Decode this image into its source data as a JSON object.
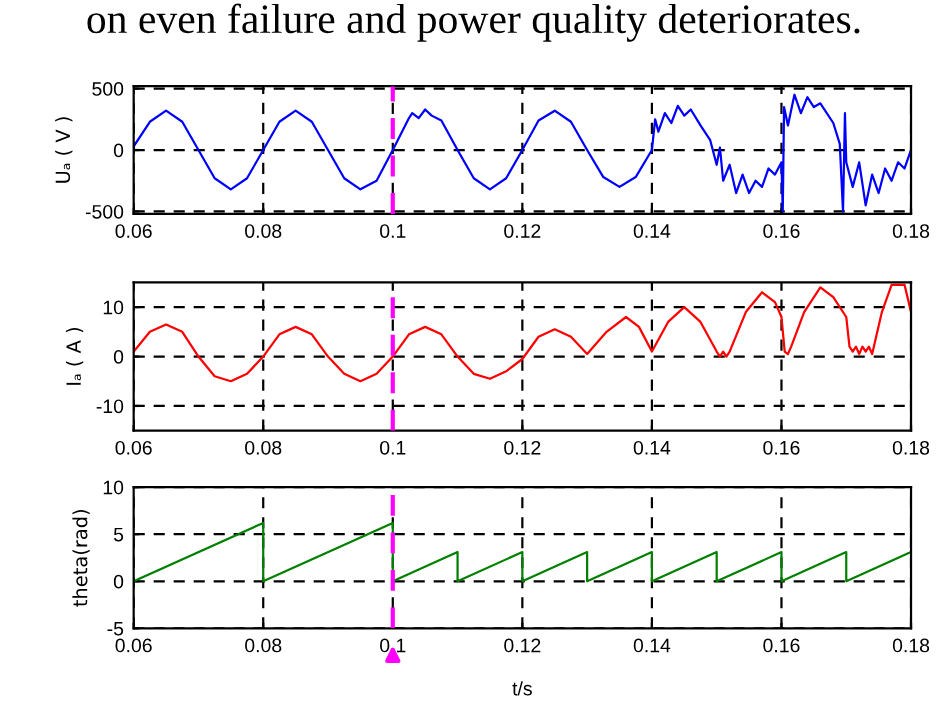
{
  "chart_data": [
    {
      "type": "line",
      "annotations": [
        "on even failure and power quality deteriorates."
      ],
      "ylabel": "Uₐ ( V )",
      "xlim": [
        0.06,
        0.18
      ],
      "xticks": [
        0.06,
        0.08,
        0.1,
        0.12,
        0.14,
        0.16,
        0.18
      ],
      "ylim": [
        -520,
        520
      ],
      "yticks": [
        -500,
        0,
        500
      ],
      "grid": true,
      "ref_lines": [
        {
          "axis": "x",
          "value": 0.1,
          "color": "#ff00ff",
          "line_style": "dashed"
        }
      ],
      "series": [
        {
          "color": "#0000ff",
          "x": [
            0.06,
            0.0625,
            0.065,
            0.0675,
            0.07,
            0.0725,
            0.075,
            0.0775,
            0.08,
            0.0825,
            0.085,
            0.0875,
            0.09,
            0.0925,
            0.095,
            0.0975,
            0.1,
            0.1025,
            0.103,
            0.104,
            0.105,
            0.106,
            0.1075,
            0.11,
            0.1125,
            0.115,
            0.1175,
            0.12,
            0.1225,
            0.125,
            0.1275,
            0.13,
            0.1325,
            0.135,
            0.1375,
            0.14,
            0.1405,
            0.141,
            0.142,
            0.143,
            0.144,
            0.145,
            0.146,
            0.1475,
            0.149,
            0.15,
            0.1505,
            0.151,
            0.152,
            0.153,
            0.154,
            0.155,
            0.156,
            0.157,
            0.158,
            0.159,
            0.16,
            0.1602,
            0.1604,
            0.161,
            0.162,
            0.163,
            0.164,
            0.165,
            0.166,
            0.168,
            0.169,
            0.1695,
            0.1698,
            0.17,
            0.171,
            0.172,
            0.173,
            0.174,
            0.175,
            0.176,
            0.177,
            0.178,
            0.179,
            0.18
          ],
          "values": [
            30,
            230,
            320,
            230,
            0,
            -230,
            -320,
            -230,
            0,
            230,
            320,
            230,
            0,
            -230,
            -320,
            -250,
            0,
            260,
            300,
            260,
            330,
            280,
            240,
            0,
            -230,
            -320,
            -230,
            0,
            240,
            320,
            230,
            0,
            -220,
            -300,
            -220,
            0,
            250,
            150,
            300,
            220,
            360,
            280,
            330,
            200,
            80,
            -120,
            20,
            -250,
            -120,
            -350,
            -200,
            -350,
            -250,
            -300,
            -150,
            -200,
            -100,
            -500,
            350,
            200,
            450,
            300,
            430,
            350,
            380,
            220,
            50,
            -500,
            300,
            -100,
            -300,
            -100,
            -450,
            -200,
            -350,
            -150,
            -250,
            -100,
            -150,
            0
          ]
        }
      ]
    },
    {
      "type": "line",
      "ylabel": "Iₐ ( A )",
      "xlim": [
        0.06,
        0.18
      ],
      "xticks": [
        0.06,
        0.08,
        0.1,
        0.12,
        0.14,
        0.16,
        0.18
      ],
      "ylim": [
        -15,
        15
      ],
      "yticks": [
        -10,
        0,
        10
      ],
      "grid": true,
      "ref_lines": [
        {
          "axis": "x",
          "value": 0.1,
          "color": "#ff00ff",
          "line_style": "dashed"
        }
      ],
      "series": [
        {
          "color": "#ff0000",
          "x": [
            0.06,
            0.0625,
            0.065,
            0.0675,
            0.07,
            0.0725,
            0.075,
            0.0775,
            0.08,
            0.0825,
            0.085,
            0.0875,
            0.09,
            0.0925,
            0.095,
            0.0975,
            0.1,
            0.1025,
            0.105,
            0.1075,
            0.11,
            0.1125,
            0.115,
            0.1175,
            0.12,
            0.1225,
            0.125,
            0.1275,
            0.13,
            0.133,
            0.136,
            0.138,
            0.14,
            0.1425,
            0.145,
            0.1475,
            0.15,
            0.1505,
            0.151,
            0.1515,
            0.152,
            0.1545,
            0.157,
            0.159,
            0.16,
            0.1605,
            0.161,
            0.1615,
            0.1635,
            0.166,
            0.168,
            0.17,
            0.1705,
            0.171,
            0.1715,
            0.172,
            0.1725,
            0.173,
            0.1735,
            0.174,
            0.1755,
            0.177,
            0.179,
            0.18
          ],
          "values": [
            1,
            5,
            6.5,
            5,
            0,
            -4,
            -5,
            -3.5,
            0,
            4.5,
            6,
            4.5,
            0,
            -3.5,
            -5,
            -3.5,
            0,
            4.5,
            6,
            4.5,
            0,
            -3.5,
            -4.5,
            -3,
            -0.5,
            4,
            5.5,
            4,
            0.5,
            5,
            8,
            6,
            1,
            7,
            10,
            7,
            1,
            0,
            1,
            0,
            1,
            9,
            13,
            11,
            8,
            1,
            0.5,
            2,
            9,
            14,
            12,
            8,
            2,
            1,
            2,
            0.5,
            2,
            1,
            2,
            0.5,
            9,
            14.5,
            14.5,
            9
          ]
        }
      ]
    },
    {
      "type": "line",
      "ylabel": "theta(rad)",
      "xlabel": "t/s",
      "xlim": [
        0.06,
        0.18
      ],
      "xticks": [
        0.06,
        0.08,
        0.1,
        0.12,
        0.14,
        0.16,
        0.18
      ],
      "ylim": [
        -5,
        10
      ],
      "yticks": [
        -5,
        0,
        5,
        10
      ],
      "grid": true,
      "ref_lines": [
        {
          "axis": "x",
          "value": 0.1,
          "color": "#ff00ff",
          "line_style": "dashed"
        }
      ],
      "series": [
        {
          "color": "#008000",
          "x": [
            0.06,
            0.08,
            0.08,
            0.1,
            0.1,
            0.11,
            0.11,
            0.12,
            0.12,
            0.13,
            0.13,
            0.14,
            0.14,
            0.15,
            0.15,
            0.16,
            0.16,
            0.17,
            0.17,
            0.18
          ],
          "values": [
            0,
            6.2,
            0,
            6.2,
            0,
            3.1,
            0,
            3.1,
            0,
            3.1,
            0,
            3.1,
            0,
            3.1,
            0,
            3.1,
            0,
            3.1,
            0,
            3.1
          ]
        }
      ]
    }
  ]
}
